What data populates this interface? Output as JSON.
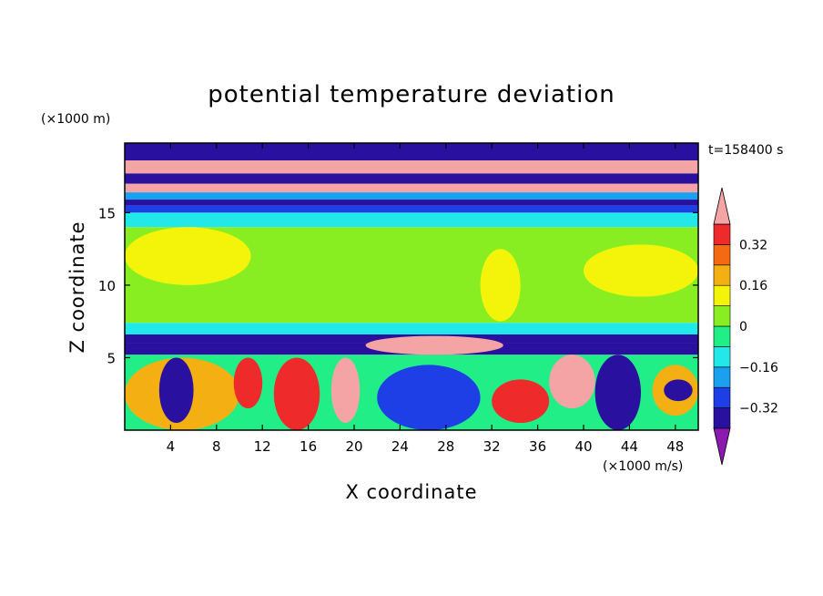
{
  "chart_data": {
    "type": "heatmap",
    "title": "potential temperature deviation",
    "xlabel": "X coordinate",
    "ylabel": "Z coordinate",
    "x_units": "(×1000 m/s)",
    "y_units": "(×1000 m)",
    "time_label": "t=158400 s",
    "xlim": [
      0,
      50
    ],
    "ylim": [
      0,
      19.8
    ],
    "x_ticks": [
      4,
      8,
      12,
      16,
      20,
      24,
      28,
      32,
      36,
      40,
      44,
      48
    ],
    "y_ticks": [
      5,
      10,
      15
    ],
    "colorbar": {
      "levels": [
        -0.4,
        -0.32,
        -0.24,
        -0.16,
        -0.08,
        0,
        0.08,
        0.16,
        0.24,
        0.32,
        0.4
      ],
      "colors": [
        "#8a1ab0",
        "#2a109e",
        "#1e3ee6",
        "#1aa0ee",
        "#22e8ea",
        "#22ee88",
        "#88ee22",
        "#f4f40a",
        "#f4b012",
        "#f46a12",
        "#ee2a2a",
        "#f4a4a4"
      ],
      "labels": [
        "0.32",
        "0.16",
        "0",
        "−0.16",
        "−0.32"
      ],
      "label_values": [
        0.32,
        0.16,
        0,
        -0.16,
        -0.32
      ],
      "extend": "both"
    },
    "bands": [
      {
        "z": [
          18.6,
          19.8
        ],
        "value": -0.38
      },
      {
        "z": [
          17.7,
          18.6
        ],
        "value": 0.45
      },
      {
        "z": [
          17.0,
          17.7
        ],
        "value": -0.36
      },
      {
        "z": [
          16.4,
          17.0
        ],
        "value": 0.42
      },
      {
        "z": [
          15.9,
          16.4
        ],
        "value": -0.2
      },
      {
        "z": [
          15.5,
          15.9
        ],
        "value": -0.35
      },
      {
        "z": [
          15.0,
          15.5
        ],
        "value": -0.25
      },
      {
        "z": [
          14.0,
          15.0
        ],
        "value": -0.11
      },
      {
        "z": [
          7.4,
          14.0
        ],
        "value": 0.02
      },
      {
        "z": [
          6.6,
          7.4
        ],
        "value": -0.1
      },
      {
        "z": [
          6.0,
          6.6
        ],
        "value": -0.38
      },
      {
        "z": [
          5.2,
          6.0
        ],
        "value": -0.36
      },
      {
        "z": [
          0,
          5.2
        ],
        "value": -0.05
      }
    ],
    "features": [
      {
        "x": [
          0,
          11
        ],
        "z": [
          10.0,
          14.0
        ],
        "value": 0.1
      },
      {
        "x": [
          40,
          50
        ],
        "z": [
          9.2,
          12.8
        ],
        "value": 0.1
      },
      {
        "x": [
          31,
          34.5
        ],
        "z": [
          7.5,
          12.5
        ],
        "value": 0.1
      },
      {
        "x": [
          21,
          33
        ],
        "z": [
          5.2,
          6.5
        ],
        "value": 0.45
      },
      {
        "x": [
          0,
          10
        ],
        "z": [
          0,
          5.0
        ],
        "value": 0.2
      },
      {
        "x": [
          3,
          6
        ],
        "z": [
          0.5,
          5.0
        ],
        "value": -0.38
      },
      {
        "x": [
          9.5,
          12
        ],
        "z": [
          1.5,
          5.0
        ],
        "value": 0.38
      },
      {
        "x": [
          13,
          17
        ],
        "z": [
          0,
          5.0
        ],
        "value": 0.32
      },
      {
        "x": [
          18,
          20.5
        ],
        "z": [
          0.5,
          5.0
        ],
        "value": 0.45
      },
      {
        "x": [
          22,
          31
        ],
        "z": [
          0,
          4.5
        ],
        "value": -0.28
      },
      {
        "x": [
          32,
          37
        ],
        "z": [
          0.5,
          3.5
        ],
        "value": 0.36
      },
      {
        "x": [
          37,
          41
        ],
        "z": [
          1.5,
          5.2
        ],
        "value": 0.4
      },
      {
        "x": [
          41,
          45
        ],
        "z": [
          0,
          5.2
        ],
        "value": -0.38
      },
      {
        "x": [
          46,
          50
        ],
        "z": [
          1.0,
          4.5
        ],
        "value": 0.2
      },
      {
        "x": [
          47,
          49.5
        ],
        "z": [
          2.0,
          3.5
        ],
        "value": -0.38
      }
    ]
  }
}
